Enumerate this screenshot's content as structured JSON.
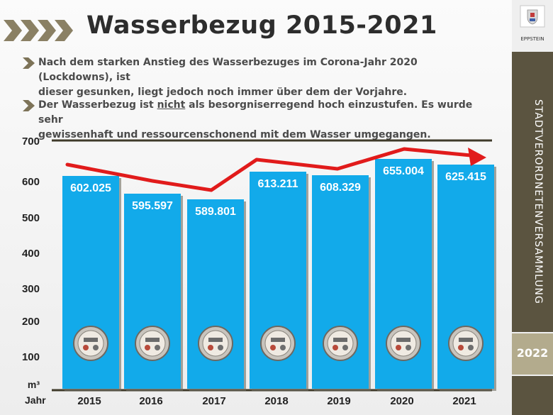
{
  "title": "Wasserbezug 2015-2021",
  "bullets": [
    {
      "line1": "Nach dem starken Anstieg des Wasserbezuges im Corona-Jahr  2020 (Lockdowns), ist",
      "line2": "dieser gesunken, liegt jedoch noch immer über dem der Vorjahre."
    },
    {
      "line1_pre": "Der Wasserbezug  ist ",
      "line1_emph": "nicht",
      "line1_post": " als besorgniserregend hoch einzustufen. Es wurde sehr",
      "line2": "gewissenhaft und ressourcenschonend  mit dem Wasser umgegangen."
    }
  ],
  "sidebar": {
    "logo_label": "EPPSTEIN",
    "vertical_text": "STADTVERORDNETENVERSAMMLUNG",
    "year": "2022"
  },
  "colors": {
    "bar": "#12aaea",
    "line": "#e11b1b",
    "chevron": "#7d7358",
    "band": "#5b5440"
  },
  "chart_data": {
    "type": "bar",
    "categories": [
      "2015",
      "2016",
      "2017",
      "2018",
      "2019",
      "2020",
      "2021"
    ],
    "values": [
      602025,
      595597,
      589801,
      613211,
      608329,
      655004,
      625415
    ],
    "value_labels": [
      "602.025",
      "595.597",
      "589.801",
      "613.211",
      "608.329",
      "655.004",
      "625.415"
    ],
    "trend_line": "red arrow",
    "xlabel": "Jahr",
    "ylabel": "m³",
    "yticks": [
      "700",
      "600",
      "500",
      "400",
      "300",
      "200",
      "100"
    ],
    "bar_icon": "water-meter-icon",
    "grid": false
  }
}
